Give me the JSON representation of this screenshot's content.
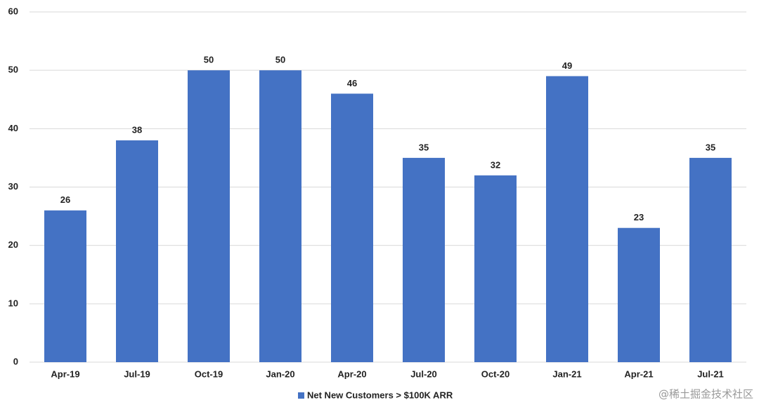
{
  "chart_data": {
    "type": "bar",
    "categories": [
      "Apr-19",
      "Jul-19",
      "Oct-19",
      "Jan-20",
      "Apr-20",
      "Jul-20",
      "Oct-20",
      "Jan-21",
      "Apr-21",
      "Jul-21"
    ],
    "series": [
      {
        "name": "Net New Customers > $100K ARR",
        "color": "#4472c4",
        "values": [
          26,
          38,
          50,
          50,
          46,
          35,
          32,
          49,
          23,
          35
        ]
      }
    ],
    "ylim": [
      0,
      60
    ],
    "yticks": [
      0,
      10,
      20,
      30,
      40,
      50,
      60
    ],
    "grid": true,
    "legend": "bottom"
  },
  "watermark": "@稀土掘金技术社区"
}
